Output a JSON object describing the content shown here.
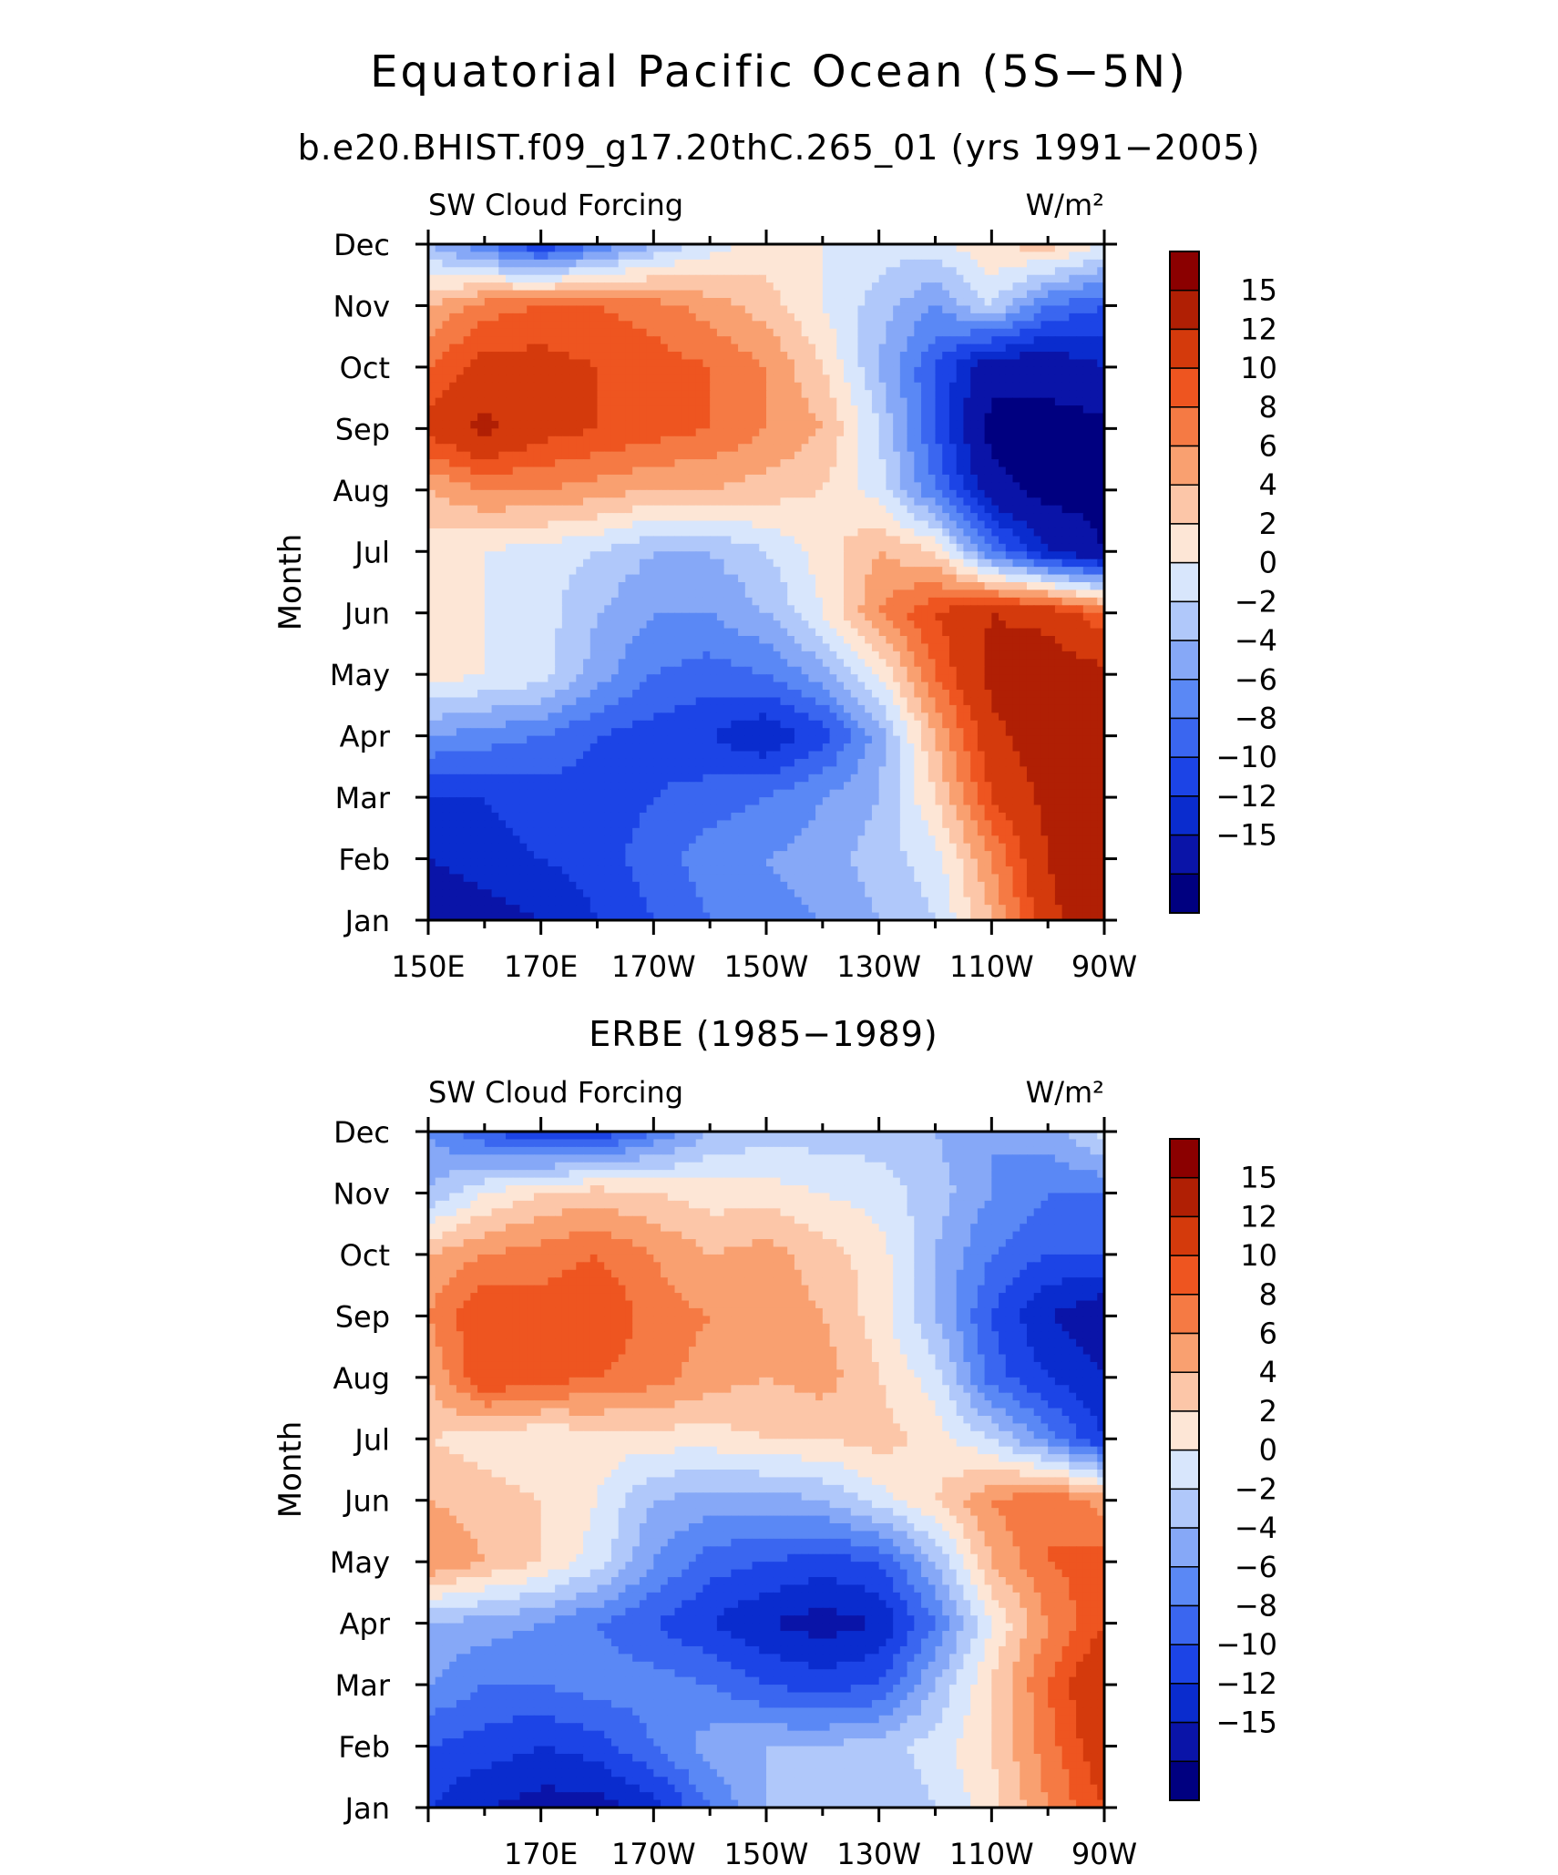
{
  "title": "Equatorial Pacific Ocean (5S−5N)",
  "subtitle": "b.e20.BHIST.f09_g17.20thC.265_01 (yrs 1991−2005)",
  "chart_data": [
    {
      "type": "heatmap",
      "title": "",
      "variable_label": "SW Cloud Forcing",
      "units_label": "W/m²",
      "ylabel": "Month",
      "months": [
        "Jan",
        "Feb",
        "Mar",
        "Apr",
        "May",
        "Jun",
        "Jul",
        "Aug",
        "Sep",
        "Oct",
        "Nov",
        "Dec"
      ],
      "x_tick_labels": [
        "150E",
        "170E",
        "170W",
        "150W",
        "130W",
        "110W",
        "90W"
      ],
      "x_tick_positions_lon": [
        150,
        170,
        190,
        210,
        230,
        250,
        270
      ],
      "xlim_lon": [
        150,
        270
      ],
      "ylim_month": [
        1,
        12
      ],
      "colorbar_levels": [
        -15,
        -12,
        -10,
        -8,
        -6,
        -4,
        -2,
        0,
        2,
        4,
        6,
        8,
        10,
        12,
        15
      ],
      "colorbar_labels": [
        "15",
        "12",
        "10",
        "8",
        "6",
        "4",
        "2",
        "0",
        "−2",
        "−4",
        "−6",
        "−8",
        "−10",
        "−12",
        "−15"
      ],
      "colorbar_colors": [
        "#000080",
        "#0a14a8",
        "#0a2cce",
        "#1c44e6",
        "#3a66f0",
        "#5a88f5",
        "#86a8f7",
        "#b0c8fa",
        "#d8e6fc",
        "#fde6d6",
        "#fcc6a8",
        "#f9a070",
        "#f57a44",
        "#ee5520",
        "#d43a0c",
        "#b01f04",
        "#8b0000"
      ],
      "lon_grid": [
        150,
        160,
        170,
        180,
        190,
        200,
        210,
        220,
        230,
        240,
        250,
        260,
        270
      ],
      "values": [
        [
          -14,
          -13,
          -12,
          -10,
          -8,
          -6,
          -5,
          -4,
          -2,
          0,
          6,
          14,
          18
        ],
        [
          -12,
          -11,
          -10,
          -9,
          -7,
          -5,
          -4,
          -3,
          -1,
          1,
          8,
          15,
          18
        ],
        [
          -10,
          -10,
          -9,
          -9,
          -8,
          -7,
          -6,
          -4,
          -2,
          4,
          12,
          16,
          17
        ],
        [
          -4,
          -5,
          -6,
          -8,
          -9,
          -10,
          -12,
          -9,
          -3,
          6,
          14,
          17,
          17
        ],
        [
          3,
          2,
          1,
          -3,
          -6,
          -7,
          -6,
          -3,
          2,
          10,
          16,
          17,
          16
        ],
        [
          2,
          2,
          1,
          -2,
          -4,
          -4,
          -2,
          2,
          8,
          12,
          15,
          14,
          10
        ],
        [
          3,
          2,
          1,
          0,
          -2,
          -2,
          0,
          3,
          6,
          4,
          -6,
          -12,
          -15
        ],
        [
          6,
          8,
          8,
          7,
          6,
          6,
          5,
          4,
          1,
          -6,
          -14,
          -16,
          -16
        ],
        [
          13,
          16,
          13,
          12,
          11,
          10,
          8,
          6,
          0,
          -8,
          -16,
          -16,
          -16
        ],
        [
          10,
          13,
          13,
          12,
          11,
          10,
          8,
          4,
          -2,
          -8,
          -14,
          -14,
          -12
        ],
        [
          6,
          9,
          10,
          10,
          9,
          7,
          5,
          2,
          -1,
          -4,
          0,
          -6,
          -8
        ],
        [
          -2,
          -6,
          -10,
          -6,
          -2,
          1,
          3,
          2,
          1,
          1,
          4,
          5,
          2
        ]
      ]
    },
    {
      "type": "heatmap",
      "title": "ERBE (1985−1989)",
      "variable_label": "SW Cloud Forcing",
      "units_label": "W/m²",
      "ylabel": "Month",
      "months": [
        "Jan",
        "Feb",
        "Mar",
        "Apr",
        "May",
        "Jun",
        "Jul",
        "Aug",
        "Sep",
        "Oct",
        "Nov",
        "Dec"
      ],
      "x_tick_labels": [
        "170E",
        "170W",
        "150W",
        "130W",
        "110W",
        "90W"
      ],
      "x_tick_positions_lon": [
        170,
        190,
        210,
        230,
        250,
        270
      ],
      "xlim_lon": [
        150,
        270
      ],
      "ylim_month": [
        1,
        12
      ],
      "colorbar_levels": [
        -15,
        -12,
        -10,
        -8,
        -6,
        -4,
        -2,
        0,
        2,
        4,
        6,
        8,
        10,
        12,
        15
      ],
      "colorbar_labels": [
        "15",
        "12",
        "10",
        "8",
        "6",
        "4",
        "2",
        "0",
        "−2",
        "−4",
        "−6",
        "−8",
        "−10",
        "−12",
        "−15"
      ],
      "colorbar_colors": [
        "#000080",
        "#0a14a8",
        "#0a2cce",
        "#1c44e6",
        "#3a66f0",
        "#5a88f5",
        "#86a8f7",
        "#b0c8fa",
        "#d8e6fc",
        "#fde6d6",
        "#fcc6a8",
        "#f9a070",
        "#f57a44",
        "#ee5520",
        "#d43a0c",
        "#b01f04",
        "#8b0000"
      ],
      "lon_grid": [
        150,
        160,
        170,
        180,
        190,
        200,
        210,
        220,
        230,
        240,
        250,
        260,
        270
      ],
      "values": [
        [
          -10,
          -12,
          -13,
          -13,
          -11,
          -6,
          -2,
          -1,
          -2,
          0,
          3,
          8,
          12
        ],
        [
          -8,
          -9,
          -10,
          -9,
          -6,
          -3,
          -2,
          -2,
          -1,
          1,
          4,
          9,
          14
        ],
        [
          -4,
          -6,
          -6,
          -5,
          -5,
          -6,
          -8,
          -9,
          -8,
          -2,
          4,
          10,
          15
        ],
        [
          -2,
          -3,
          -4,
          -6,
          -8,
          -10,
          -12,
          -13,
          -12,
          -6,
          2,
          8,
          12
        ],
        [
          8,
          6,
          4,
          1,
          -4,
          -7,
          -8,
          -9,
          -8,
          -2,
          6,
          10,
          11
        ],
        [
          6,
          5,
          4,
          2,
          -2,
          -3,
          -3,
          -2,
          1,
          4,
          8,
          10,
          7
        ],
        [
          4,
          3,
          2,
          3,
          3,
          3,
          4,
          4,
          5,
          3,
          0,
          -5,
          -10
        ],
        [
          6,
          12,
          11,
          10,
          9,
          7,
          6,
          7,
          4,
          1,
          -7,
          -10,
          -12
        ],
        [
          8,
          12,
          11,
          12,
          9,
          8,
          7,
          6,
          3,
          -2,
          -8,
          -12,
          -14
        ],
        [
          6,
          8,
          9,
          10,
          8,
          6,
          7,
          5,
          3,
          -2,
          -6,
          -8,
          -8
        ],
        [
          -2,
          2,
          4,
          5,
          4,
          3,
          3,
          2,
          1,
          -1,
          -4,
          -6,
          -6
        ],
        [
          -4,
          -8,
          -10,
          -10,
          -6,
          -2,
          -1,
          -1,
          -1,
          -2,
          -4,
          -3,
          1
        ]
      ]
    }
  ]
}
